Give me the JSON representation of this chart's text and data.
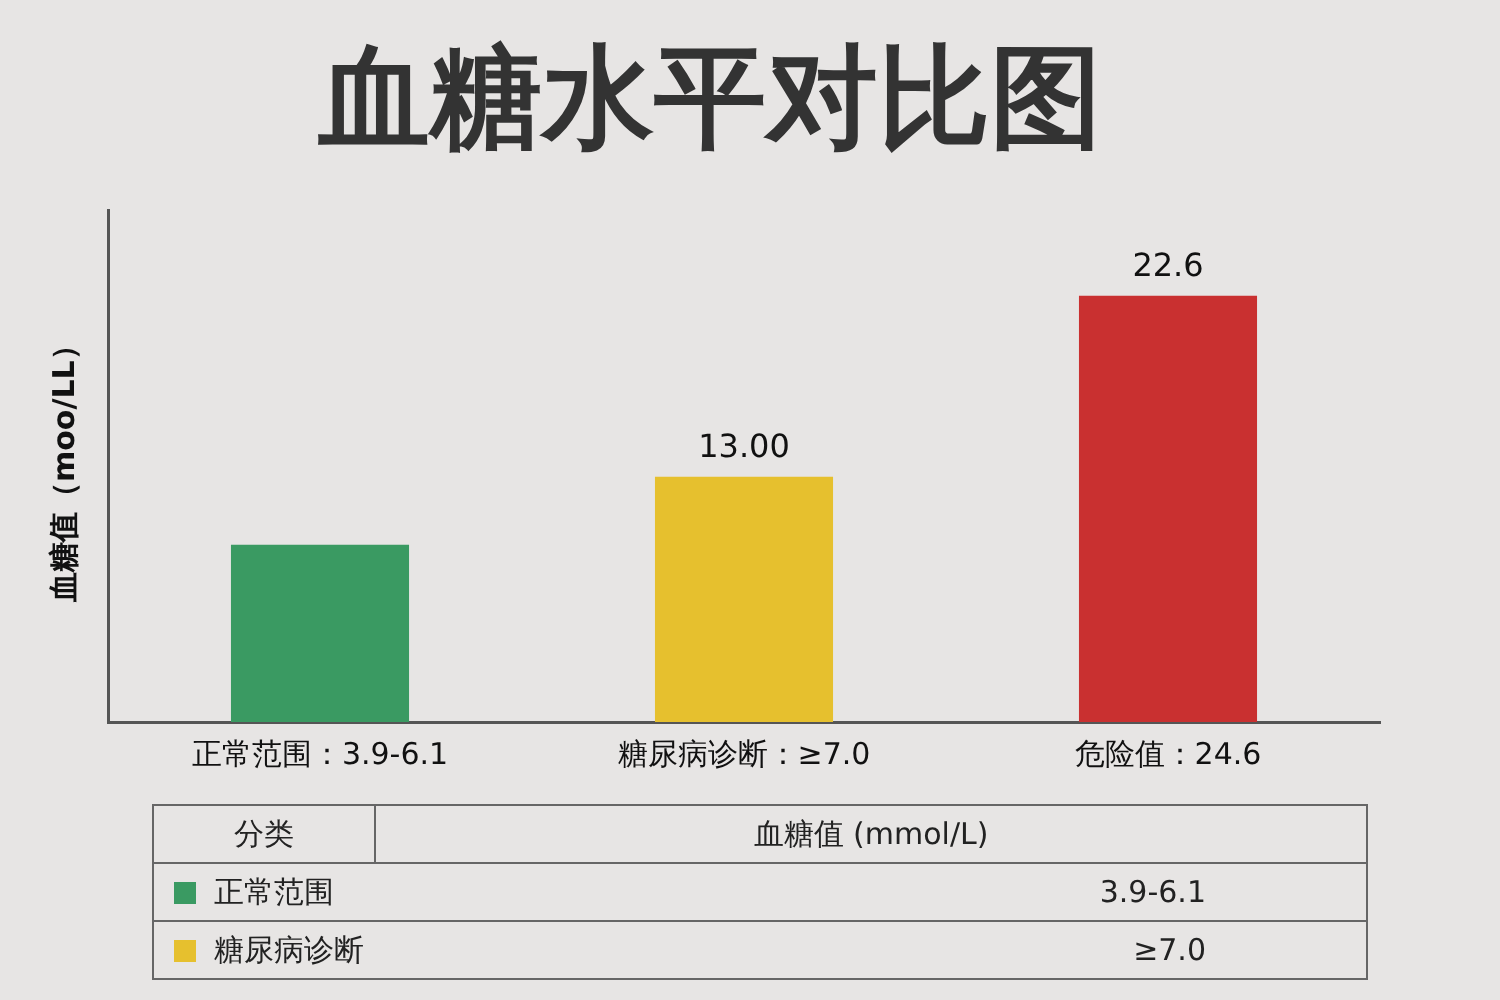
{
  "chart_data": {
    "type": "bar",
    "title": "血糖水平对比图",
    "ylabel": "血糖值（moo/LL）",
    "categories": [
      "正常范围：3.9-6.1",
      "糖尿病诊断：≥7.0",
      "危险值：24.6"
    ],
    "tick_labels": "x",
    "values": [
      9.4,
      13.0,
      22.6
    ],
    "colors": [
      "#3a9a62",
      "#e6c02e",
      "#c93030"
    ],
    "value_labels": [
      null,
      "13.00",
      "22.6"
    ],
    "grid": false,
    "legend": false,
    "annotations": [
      "分类",
      "血糖值 (mmol/L)",
      "正常范围",
      "3.9-6.1",
      "糖尿病诊断",
      "≥7.0"
    ]
  }
}
